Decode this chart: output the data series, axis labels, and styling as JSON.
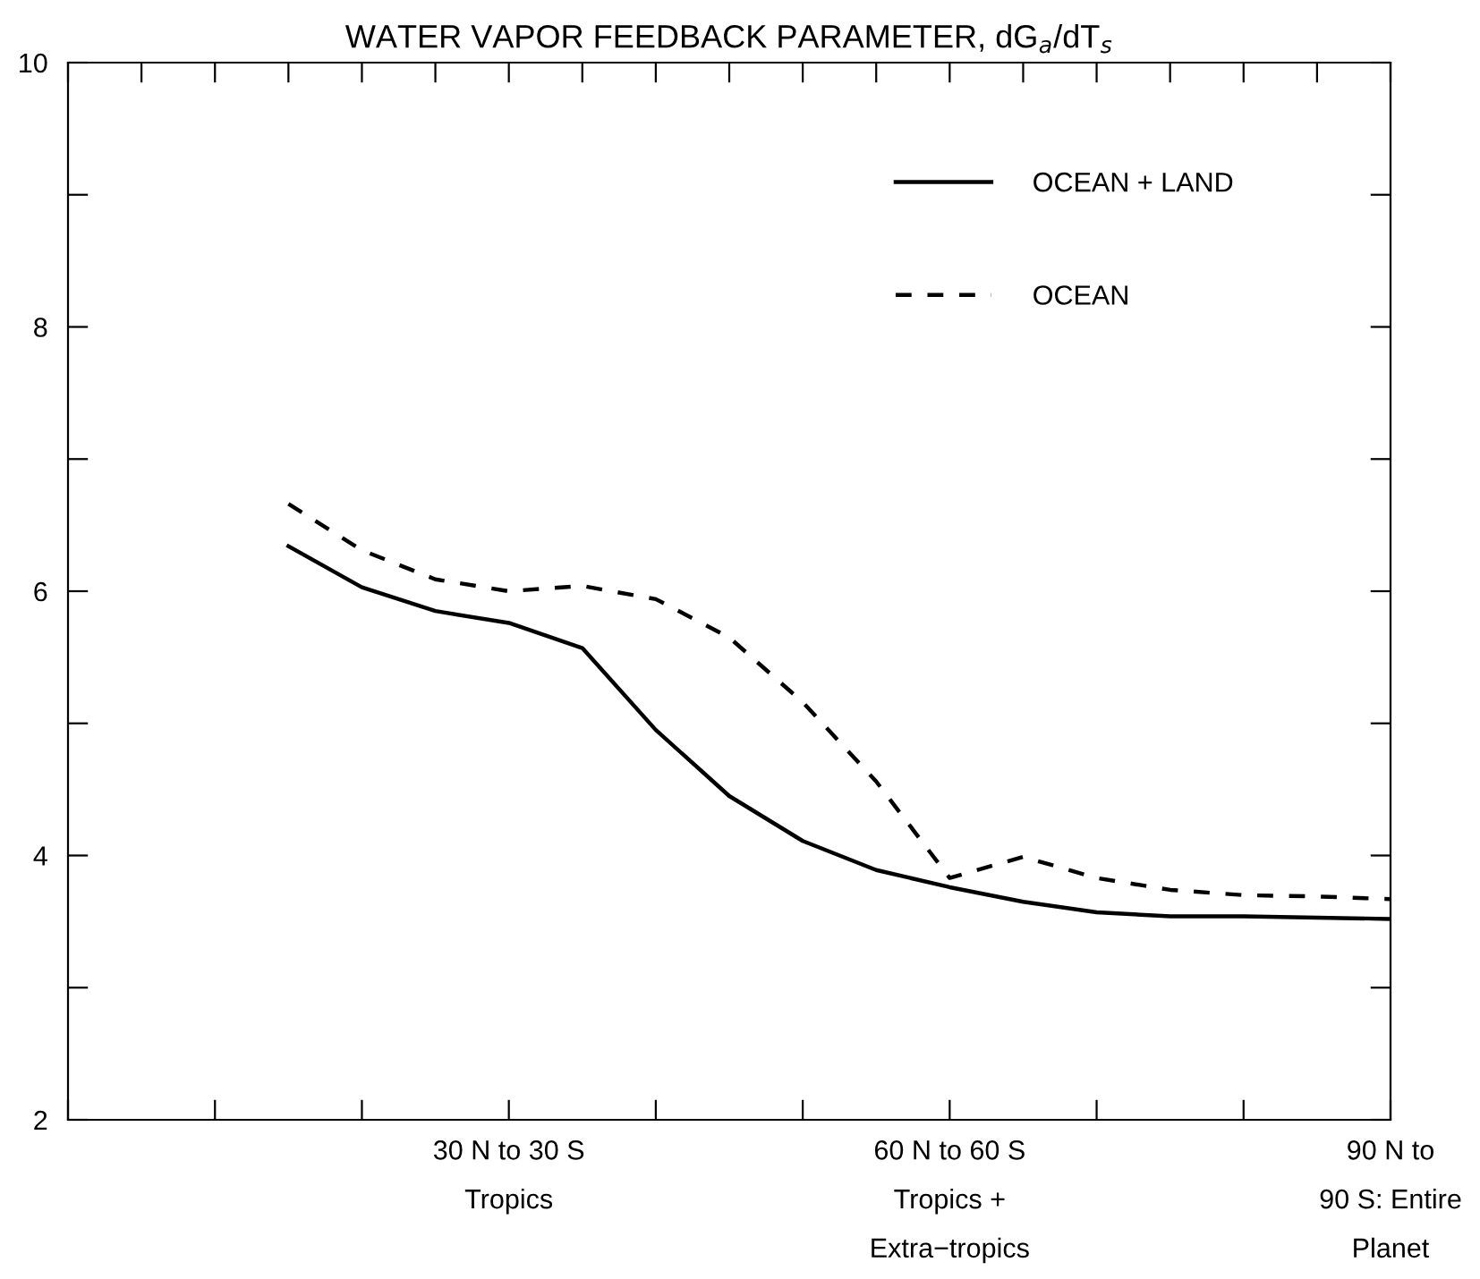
{
  "chart_data": {
    "type": "line",
    "title": "WATER VAPOR FEEDBACK PARAMETER, dG$_{a}$/dT$_{s}$",
    "categories": [
      null,
      null,
      null,
      null,
      null,
      null,
      "30 N to 30 S\n\nTropics",
      null,
      null,
      null,
      null,
      null,
      "60 N to 60 S\n\nTropics +\n\nExtra−tropics",
      null,
      null,
      null,
      null,
      null,
      "90 N to\n\n90 S: Entire\n\nPlanet"
    ],
    "series": [
      {
        "name": "OCEAN + LAND",
        "color": "#000000",
        "line_style": "solid",
        "values": [
          null,
          null,
          null,
          6.34,
          6.03,
          5.85,
          5.76,
          5.57,
          4.95,
          4.45,
          4.11,
          3.89,
          3.76,
          3.65,
          3.57,
          3.54,
          3.54,
          3.53,
          3.52
        ]
      },
      {
        "name": "OCEAN",
        "color": "#000000",
        "line_style": "dashed",
        "values": [
          null,
          null,
          null,
          6.66,
          6.31,
          6.09,
          6.0,
          6.04,
          5.94,
          5.65,
          5.16,
          4.56,
          3.83,
          3.99,
          3.83,
          3.74,
          3.7,
          3.69,
          3.67
        ]
      }
    ],
    "ylim": [
      2,
      10
    ],
    "yticks": [
      2,
      {
        "value": 3,
        "label": null
      },
      4,
      {
        "value": 5,
        "label": null
      },
      6,
      {
        "value": 7,
        "label": null
      },
      8,
      {
        "value": 9,
        "label": null
      },
      10
    ],
    "grid": false,
    "legend": "top right",
    "marker": "none"
  }
}
